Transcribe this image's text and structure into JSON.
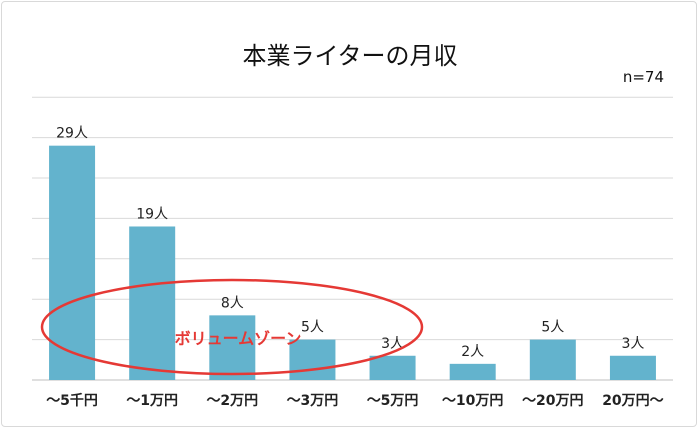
{
  "chart_data": {
    "type": "bar",
    "title": "本業ライターの月収",
    "note": "n=74",
    "categories": [
      "～5千円",
      "～1万円",
      "～2万円",
      "～3万円",
      "～5万円",
      "～10万円",
      "～20万円",
      "20万円～"
    ],
    "values": [
      29,
      19,
      8,
      5,
      3,
      2,
      5,
      3
    ],
    "data_labels": [
      "29人",
      "19人",
      "8人",
      "5人",
      "3人",
      "2人",
      "5人",
      "3人"
    ],
    "ylim": [
      0,
      30
    ],
    "grid": true,
    "annotation": "ボリュームゾーン",
    "colors": {
      "bar": "#63b3cd",
      "grid": "#d9d9d9",
      "ellipse": "#e53935"
    }
  }
}
